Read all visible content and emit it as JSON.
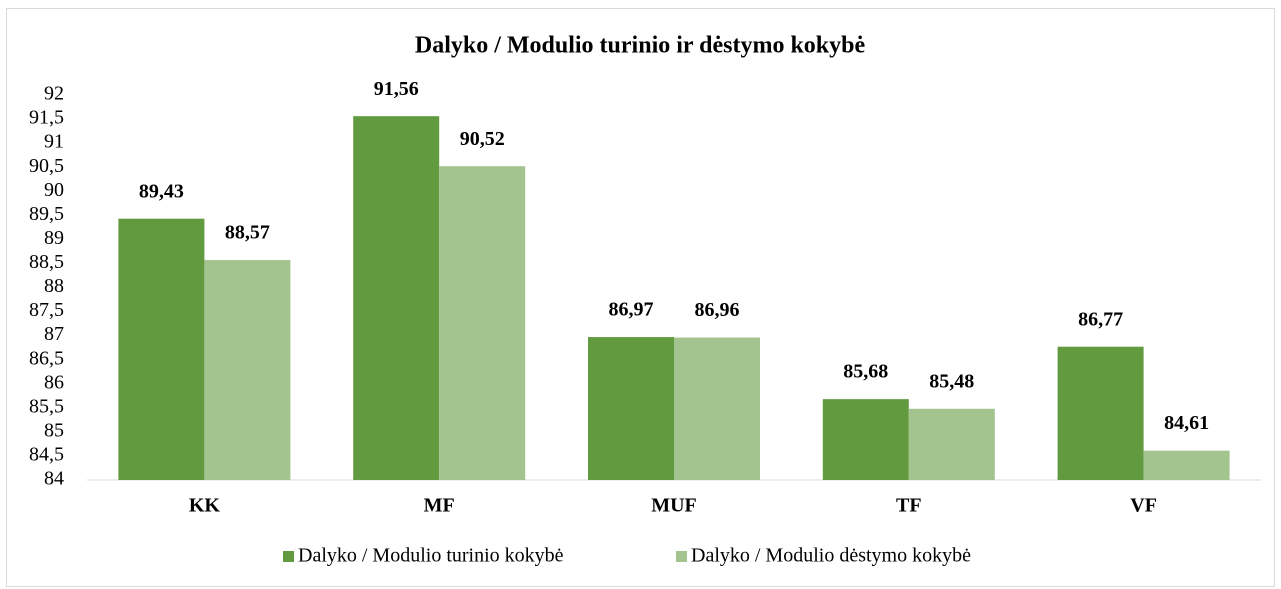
{
  "chart_data": {
    "type": "bar",
    "title": "Dalyko / Modulio turinio ir dėstymo kokybė",
    "categories": [
      "KK",
      "MF",
      "MUF",
      "TF",
      "VF"
    ],
    "series": [
      {
        "name": "Dalyko / Modulio turinio kokybė",
        "color": "#629b3f",
        "values": [
          89.43,
          91.56,
          86.97,
          85.68,
          86.77
        ],
        "value_labels": [
          "89,43",
          "91,56",
          "86,97",
          "85,68",
          "86,77"
        ]
      },
      {
        "name": "Dalyko / Modulio dėstymo kokybė",
        "color": "#a3c48f",
        "values": [
          88.57,
          90.52,
          86.96,
          85.48,
          84.61
        ],
        "value_labels": [
          "88,57",
          "90,52",
          "86,96",
          "85,48",
          "84,61"
        ]
      }
    ],
    "ylim": [
      84,
      92
    ],
    "yticks": [
      84,
      {
        "value": 84.5,
        "label": "84,5"
      },
      85,
      {
        "value": 85.5,
        "label": "85,5"
      },
      86,
      {
        "value": 86.5,
        "label": "86,5"
      },
      87,
      {
        "value": 87.5,
        "label": "87,5"
      },
      88,
      {
        "value": 88.5,
        "label": "88,5"
      },
      89,
      {
        "value": 89.5,
        "label": "89,5"
      },
      90,
      {
        "value": 90.5,
        "label": "90,5"
      },
      91,
      {
        "value": 91.5,
        "label": "91,5"
      },
      92
    ],
    "grid": false,
    "legend": "bottom"
  }
}
